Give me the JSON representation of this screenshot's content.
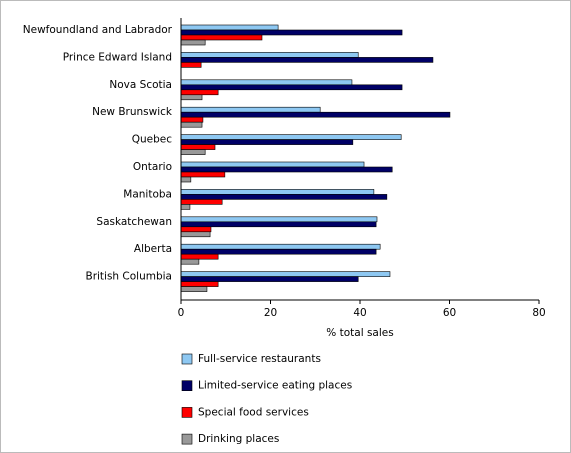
{
  "chart_data": {
    "type": "bar",
    "orientation": "horizontal",
    "x_label": "% total sales",
    "categories": [
      "Newfoundland and Labrador",
      "Prince Edward Island",
      "Nova Scotia",
      "New Brunswick",
      "Quebec",
      "Ontario",
      "Manitoba",
      "Saskatchewan",
      "Alberta",
      "British Columbia"
    ],
    "series": [
      {
        "name": "Full-service restaurants",
        "color": "#8ec8f2",
        "values": [
          21.7,
          39.6,
          38.2,
          31.1,
          49.2,
          40.9,
          43.1,
          43.8,
          44.5,
          46.7
        ]
      },
      {
        "name": "Limited-service eating places",
        "color": "#000066",
        "values": [
          49.4,
          56.3,
          49.4,
          60.1,
          38.4,
          47.2,
          46.0,
          43.6,
          43.6,
          39.6
        ]
      },
      {
        "name": "Special food services",
        "color": "#ff0000",
        "values": [
          18.1,
          4.5,
          8.3,
          4.9,
          7.6,
          9.8,
          9.2,
          6.7,
          8.3,
          8.3
        ]
      },
      {
        "name": "Drinking places",
        "color": "#999999",
        "values": [
          5.4,
          0,
          4.7,
          4.7,
          5.4,
          2.2,
          2.0,
          6.5,
          4.0,
          5.8
        ]
      }
    ],
    "xlim": [
      0,
      80
    ],
    "xticks": [
      0,
      20,
      40,
      60,
      80
    ]
  }
}
